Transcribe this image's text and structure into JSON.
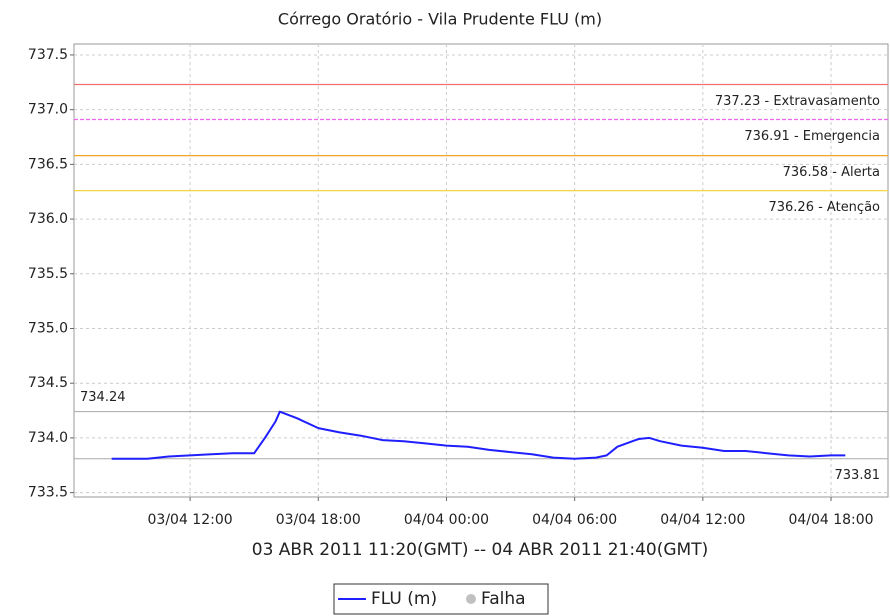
{
  "chart_data": {
    "type": "line",
    "title": "Córrego Oratório - Vila Prudente FLU (m)",
    "subtitle": "03 ABR 2011 11:20(GMT) -- 04 ABR 2011 21:40(GMT)",
    "x": [
      "03/04 08:20",
      "03/04 10:00",
      "03/04 11:00",
      "03/04 13:00",
      "03/04 14:00",
      "03/04 15:00",
      "03/04 15:30",
      "03/04 16:00",
      "03/04 16:12",
      "03/04 17:00",
      "03/04 18:00",
      "03/04 19:00",
      "03/04 20:00",
      "03/04 21:00",
      "03/04 22:00",
      "03/04 23:00",
      "04/04 00:00",
      "04/04 01:00",
      "04/04 02:00",
      "04/04 03:00",
      "04/04 04:00",
      "04/04 05:00",
      "04/04 06:00",
      "04/04 07:00",
      "04/04 07:30",
      "04/04 08:00",
      "04/04 09:00",
      "04/04 09:30",
      "04/04 10:00",
      "04/04 11:00",
      "04/04 12:00",
      "04/04 13:00",
      "04/04 14:00",
      "04/04 15:00",
      "04/04 16:00",
      "04/04 17:00",
      "04/04 18:00",
      "04/04 18:40"
    ],
    "series": [
      {
        "name": "FLU (m)",
        "color": "#1f1fff",
        "values": [
          733.81,
          733.81,
          733.83,
          733.85,
          733.86,
          733.86,
          734.0,
          734.15,
          734.24,
          734.18,
          734.09,
          734.05,
          734.02,
          733.98,
          733.97,
          733.95,
          733.93,
          733.92,
          733.89,
          733.87,
          733.85,
          733.82,
          733.81,
          733.82,
          733.84,
          733.92,
          733.99,
          734.0,
          733.97,
          733.93,
          733.91,
          733.88,
          733.88,
          733.86,
          733.84,
          733.83,
          733.84,
          733.84
        ]
      }
    ],
    "failure_marker": {
      "name": "Falha",
      "color": "#c0c0c0"
    },
    "xlim": [
      "03/04 06:34",
      "04/04 20:40"
    ],
    "xticks": [
      "03/04 12:00",
      "03/04 18:00",
      "04/04 00:00",
      "04/04 06:00",
      "04/04 12:00",
      "04/04 18:00"
    ],
    "ylim": [
      733.46,
      737.6
    ],
    "yticks": [
      {
        "value": 733.5,
        "label": "733.5"
      },
      {
        "value": 734,
        "label": "734.0"
      },
      {
        "value": 734.5,
        "label": "734.5"
      },
      {
        "value": 735,
        "label": "735.0"
      },
      {
        "value": 735.5,
        "label": "735.5"
      },
      {
        "value": 736,
        "label": "736.0"
      },
      {
        "value": 736.5,
        "label": "736.5"
      },
      {
        "value": 737,
        "label": "737.0"
      },
      {
        "value": 737.5,
        "label": "737.5"
      }
    ],
    "grid": true,
    "thresholds": [
      {
        "value": 737.23,
        "label": "737.23 - Extravasamento",
        "color": "#f07070",
        "dashed": false
      },
      {
        "value": 736.91,
        "label": "736.91 - Emergencia",
        "color": "#ee66ee",
        "dashed": true
      },
      {
        "value": 736.58,
        "label": "736.58 - Alerta",
        "color": "#f5a623",
        "dashed": false
      },
      {
        "value": 736.26,
        "label": "736.26 - Atenção",
        "color": "#f5d442",
        "dashed": false
      }
    ],
    "reference_lines": [
      {
        "value": 734.24,
        "label": "734.24",
        "side": "left"
      },
      {
        "value": 733.81,
        "label": "733.81",
        "side": "right"
      }
    ]
  }
}
